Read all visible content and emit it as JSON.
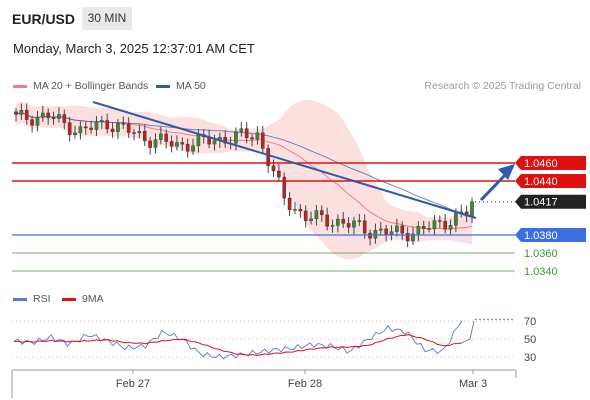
{
  "header": {
    "symbol": "EUR/USD",
    "timeframe": "30 MIN",
    "datetime": "Monday, March 3, 2025 12:37:01 AM CET"
  },
  "legend": {
    "ma20_label": "MA 20 + Bollinger Bands",
    "ma50_label": "MA 50",
    "research": "Research © 2025 Trading Central",
    "rsi_label": "RSI",
    "rsi_ma_label": "9MA"
  },
  "colors": {
    "ma20": "#f08080",
    "ma50": "#2e5aa8",
    "bands_fill": "#fbd4d4",
    "resistance": "#e01010",
    "current": "#222222",
    "support_blue": "#3b6fe0",
    "support_green": "#3a9a3a",
    "rsi": "#5577dd",
    "rsi_ma": "#e01010",
    "arrow": "#2e5aa8",
    "candle_up": "#3a8a3a",
    "candle_down": "#c02020"
  },
  "levels": [
    {
      "value": "1.0460",
      "kind": "resistance"
    },
    {
      "value": "1.0440",
      "kind": "resistance"
    },
    {
      "value": "1.0417",
      "kind": "current"
    },
    {
      "value": "1.0380",
      "kind": "support-blue"
    },
    {
      "value": "1.0360",
      "kind": "support-green"
    },
    {
      "value": "1.0340",
      "kind": "support-green"
    }
  ],
  "chart_data": [
    {
      "type": "candlestick",
      "title": "EUR/USD",
      "x_ticks": [
        "Feb 27",
        "Feb 28",
        "Mar 3"
      ],
      "price_levels": [
        1.046,
        1.044,
        1.0417,
        1.038,
        1.036,
        1.034
      ],
      "series": [
        {
          "name": "MA 20 + Bollinger Bands",
          "values": [
            1.05,
            1.0498,
            1.0492,
            1.048,
            1.0462,
            1.044,
            1.0418,
            1.0398,
            1.039,
            1.0388,
            1.0394,
            1.04,
            1.0405
          ]
        },
        {
          "name": "MA 50",
          "values": [
            1.0505,
            1.0502,
            1.05,
            1.0494,
            1.048,
            1.0465,
            1.045,
            1.043,
            1.0415,
            1.04,
            1.0395,
            1.0393,
            1.0396
          ]
        }
      ],
      "close": [
        1.051,
        1.0512,
        1.0495,
        1.0505,
        1.0488,
        1.048,
        1.0492,
        1.042,
        1.04,
        1.0395,
        1.0385,
        1.0382,
        1.0384,
        1.0395,
        1.0405,
        1.04,
        1.036,
        1.0366,
        1.0417
      ]
    },
    {
      "type": "line",
      "title": "RSI",
      "ylim": [
        20,
        80
      ],
      "y_ticks": [
        70,
        50,
        30
      ],
      "series": [
        {
          "name": "RSI",
          "values": [
            48,
            46,
            52,
            44,
            55,
            48,
            40,
            42,
            58,
            50,
            33,
            30,
            32,
            35,
            38,
            40,
            44,
            42,
            36,
            50,
            62,
            58,
            38,
            36,
            72
          ]
        },
        {
          "name": "9MA",
          "values": [
            47,
            47,
            48,
            47,
            48,
            49,
            46,
            45,
            48,
            50,
            45,
            38,
            33,
            32,
            34,
            36,
            39,
            41,
            41,
            43,
            50,
            55,
            50,
            42,
            46
          ]
        }
      ]
    }
  ]
}
